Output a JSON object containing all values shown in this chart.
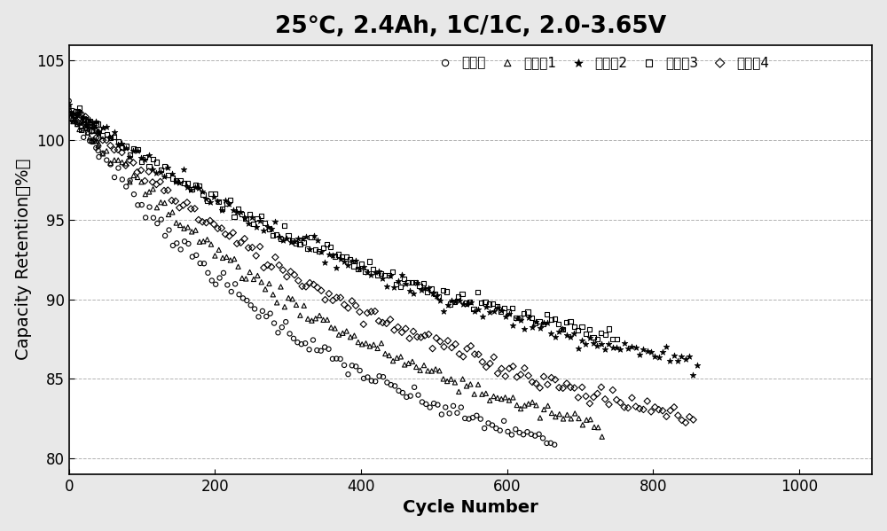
{
  "title": "25℃, 2.4Ah, 1C/1C, 2.0-3.65V",
  "xlabel": "Cycle Number",
  "ylabel": "Capacity Retention（%）",
  "xlim": [
    0,
    1100
  ],
  "ylim": [
    79,
    106
  ],
  "xticks": [
    0,
    200,
    400,
    600,
    800,
    1000
  ],
  "yticks": [
    80,
    85,
    90,
    95,
    100,
    105
  ],
  "grid_color": "#aaaaaa",
  "fig_bg_color": "#e8e8e8",
  "plot_bg_color": "#ffffff",
  "title_fontsize": 19,
  "label_fontsize": 14,
  "tick_fontsize": 12,
  "legend_fontsize": 11,
  "legend_labels": [
    "对比例",
    "实施例1",
    "实施例2",
    "实施例3",
    "实施例4"
  ],
  "markers": [
    "o",
    "^",
    "*",
    "s",
    "D"
  ],
  "series_params": [
    {
      "x_end": 665,
      "y_start": 102.0,
      "y_end": 81.0,
      "decay": 1.8,
      "n": 133
    },
    {
      "x_end": 730,
      "y_start": 102.0,
      "y_end": 82.0,
      "decay": 1.6,
      "n": 146
    },
    {
      "x_end": 860,
      "y_start": 102.0,
      "y_end": 86.0,
      "decay": 1.3,
      "n": 172
    },
    {
      "x_end": 750,
      "y_start": 102.0,
      "y_end": 87.5,
      "decay": 1.2,
      "n": 150
    },
    {
      "x_end": 855,
      "y_start": 102.0,
      "y_end": 82.5,
      "decay": 1.5,
      "n": 171
    }
  ]
}
